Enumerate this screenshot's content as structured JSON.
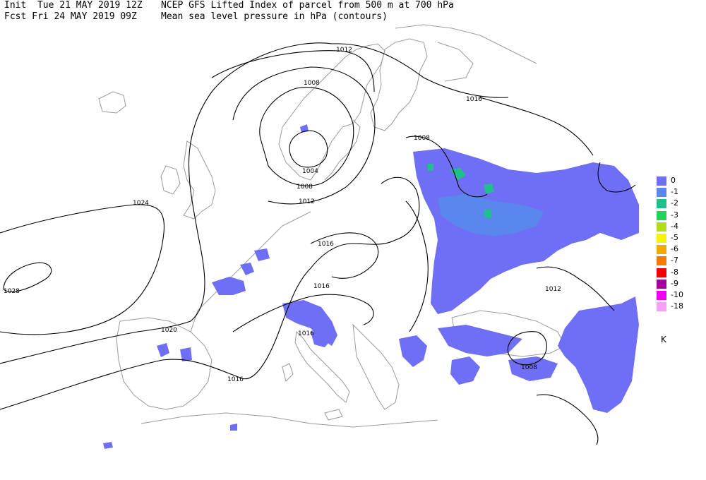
{
  "header": {
    "line1_left": "Init  Tue 21 MAY 2019 12Z",
    "line2_left": "Fcst Fri 24 MAY 2019 09Z",
    "line1_right": "NCEP GFS Lifted Index of parcel from 500 m at 700 hPa",
    "line2_right": "Mean sea level pressure in hPa (contours)"
  },
  "legend": {
    "unit": "K",
    "items": [
      {
        "label": "0",
        "color": "#6f6ff5"
      },
      {
        "label": "-1",
        "color": "#5a87ee"
      },
      {
        "label": "-2",
        "color": "#1fc08a"
      },
      {
        "label": "-3",
        "color": "#22d35a"
      },
      {
        "label": "-4",
        "color": "#b0dc1a"
      },
      {
        "label": "-5",
        "color": "#f5f500"
      },
      {
        "label": "-6",
        "color": "#f5a800"
      },
      {
        "label": "-7",
        "color": "#f57a00"
      },
      {
        "label": "-8",
        "color": "#f50000"
      },
      {
        "label": "-9",
        "color": "#a3009c"
      },
      {
        "label": "-10",
        "color": "#f000f0"
      },
      {
        "label": "-18",
        "color": "#f5a0f5"
      }
    ]
  },
  "isobar_labels": [
    "1012",
    "1016",
    "1008",
    "1004",
    "1008",
    "1012",
    "1024",
    "1028",
    "1016",
    "1016",
    "1020",
    "1016",
    "1016",
    "1008",
    "1012",
    "1008"
  ]
}
